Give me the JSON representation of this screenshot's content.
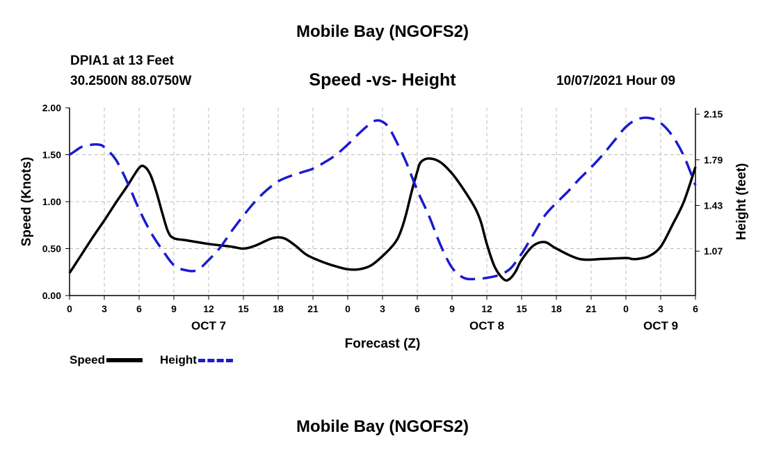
{
  "header": {
    "title": "Mobile Bay (NGOFS2)",
    "station": "DPIA1 at 13 Feet",
    "coords": "30.2500N  88.0750W",
    "subtitle": "Speed -vs- Height",
    "datetime": "10/07/2021 Hour 09"
  },
  "footer": {
    "title": "Mobile Bay (NGOFS2)"
  },
  "legend": {
    "speed_label": "Speed",
    "height_label": "Height"
  },
  "colors": {
    "speed": "#000000",
    "height": "#1a1ad0",
    "grid": "#bbbbbb"
  },
  "chart_data": {
    "type": "line",
    "title": "Speed -vs- Height",
    "xlabel": "Forecast (Z)",
    "ylabel": "Speed (Knots)",
    "y2label": "Height (feet)",
    "xlim": [
      0,
      54
    ],
    "ylim": [
      0,
      2.0
    ],
    "y2lim": [
      0.72,
      2.2
    ],
    "x_ticks": [
      0,
      3,
      6,
      9,
      12,
      15,
      18,
      21,
      24,
      27,
      30,
      33,
      36,
      39,
      42,
      45,
      48,
      51,
      54
    ],
    "x_tick_labels": [
      "0",
      "3",
      "6",
      "9",
      "12",
      "15",
      "18",
      "21",
      "0",
      "3",
      "6",
      "9",
      "12",
      "15",
      "18",
      "21",
      "0",
      "3",
      "6"
    ],
    "date_labels": [
      {
        "x": 12,
        "label": "OCT 7"
      },
      {
        "x": 36,
        "label": "OCT 8"
      },
      {
        "x": 51,
        "label": "OCT 9"
      }
    ],
    "y_ticks": [
      0,
      0.5,
      1.0,
      1.5,
      2.0
    ],
    "y_tick_labels": [
      "0.00",
      "0.50",
      "1.00",
      "1.50",
      "2.00"
    ],
    "y2_ticks": [
      1.07,
      1.43,
      1.79,
      2.15
    ],
    "y2_tick_labels": [
      "1.07",
      "1.43",
      "1.79",
      "2.15"
    ],
    "grid": true,
    "series": [
      {
        "name": "Speed",
        "axis": "left",
        "style": "solid",
        "x": [
          0,
          1,
          2,
          3,
          4,
          5,
          6,
          6.5,
          7,
          7.5,
          8,
          8.5,
          9,
          10,
          12,
          14,
          15,
          16,
          17.5,
          18.5,
          19.5,
          20.5,
          22,
          23,
          24,
          25,
          26,
          27,
          28,
          28.5,
          29,
          29.5,
          30,
          30.3,
          31,
          32,
          33,
          34,
          35,
          35.5,
          36,
          36.7,
          37.5,
          38,
          38.5,
          39,
          40,
          41,
          42,
          44,
          46,
          48,
          48.5,
          49,
          50,
          51,
          52,
          53,
          54
        ],
        "values": [
          0.24,
          0.43,
          0.62,
          0.8,
          0.99,
          1.17,
          1.36,
          1.37,
          1.28,
          1.1,
          0.88,
          0.68,
          0.61,
          0.59,
          0.55,
          0.52,
          0.5,
          0.53,
          0.61,
          0.61,
          0.53,
          0.43,
          0.35,
          0.31,
          0.28,
          0.28,
          0.32,
          0.42,
          0.55,
          0.66,
          0.85,
          1.1,
          1.32,
          1.42,
          1.46,
          1.42,
          1.3,
          1.13,
          0.93,
          0.78,
          0.55,
          0.3,
          0.17,
          0.18,
          0.26,
          0.38,
          0.53,
          0.57,
          0.5,
          0.39,
          0.39,
          0.4,
          0.39,
          0.39,
          0.42,
          0.52,
          0.75,
          1.0,
          1.37
        ]
      },
      {
        "name": "Height",
        "axis": "right",
        "style": "dashed",
        "x": [
          0,
          0.5,
          1,
          1.5,
          2,
          2.5,
          3,
          4,
          5,
          6,
          7,
          8,
          9,
          10,
          11,
          12,
          13,
          14,
          15,
          16,
          17,
          18,
          19,
          20,
          21,
          22,
          23,
          24,
          25,
          26,
          26.5,
          27,
          27.5,
          28,
          29,
          30,
          31,
          32,
          33,
          34,
          35,
          36,
          37,
          38,
          39,
          40,
          41,
          42,
          43,
          44,
          45,
          46,
          47,
          48,
          49,
          50,
          51,
          52,
          53,
          54
        ],
        "values": [
          1.83,
          1.86,
          1.89,
          1.9,
          1.91,
          1.91,
          1.89,
          1.79,
          1.61,
          1.4,
          1.22,
          1.08,
          0.96,
          0.92,
          0.92,
          1.0,
          1.1,
          1.23,
          1.35,
          1.46,
          1.55,
          1.62,
          1.66,
          1.69,
          1.72,
          1.77,
          1.83,
          1.91,
          2.0,
          2.08,
          2.1,
          2.09,
          2.05,
          1.97,
          1.78,
          1.55,
          1.35,
          1.12,
          0.94,
          0.86,
          0.85,
          0.86,
          0.88,
          0.93,
          1.05,
          1.2,
          1.35,
          1.45,
          1.54,
          1.64,
          1.73,
          1.83,
          1.94,
          2.05,
          2.11,
          2.12,
          2.08,
          1.98,
          1.82,
          1.59
        ]
      }
    ]
  }
}
